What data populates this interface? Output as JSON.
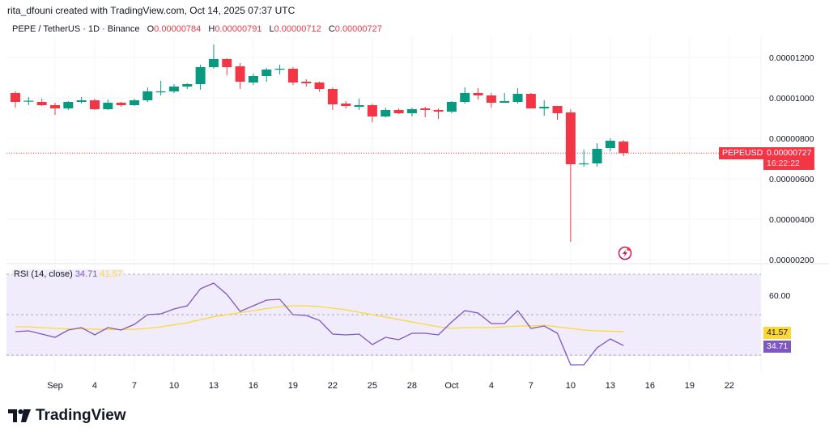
{
  "credit": "rita_dfouni created with TradingView.com, Oct 14, 2025 07:37 UTC",
  "symbol_line": {
    "name": "PEPE / TetherUS · 1D · Binance",
    "open_label": "O",
    "open": "0.00000784",
    "high_label": "H",
    "high": "0.00000791",
    "low_label": "L",
    "low": "0.00000712",
    "close_label": "C",
    "close": "0.00000727"
  },
  "price_axis": {
    "ticks": [
      "0.00001200",
      "0.00001000",
      "0.00000800",
      "0.00000600",
      "0.00000400",
      "0.00000200"
    ],
    "tick_values": [
      12,
      10,
      8,
      6,
      4,
      2
    ],
    "unit_note": "values in 1e-6 USDT"
  },
  "last_price": {
    "symbol_tag": "PEPEUSDT",
    "price": "0.00000727",
    "countdown": "16:22:22",
    "value": 7.27
  },
  "rsi": {
    "title": "RSI (14, close)",
    "rsi_value": "34.71",
    "ma_value": "41.57",
    "axis_tick": "60.00",
    "bands": [
      70,
      50,
      30
    ]
  },
  "time_axis": {
    "labels": [
      "Sep",
      "4",
      "7",
      "10",
      "13",
      "16",
      "19",
      "22",
      "25",
      "28",
      "Oct",
      "4",
      "7",
      "10",
      "13",
      "16",
      "19",
      "22"
    ],
    "label_day_index": [
      3,
      6,
      9,
      12,
      15,
      18,
      21,
      24,
      27,
      30,
      33,
      36,
      39,
      42,
      45,
      48,
      51,
      54
    ]
  },
  "colors": {
    "up": "#089981",
    "down": "#f23645",
    "rsi_line": "#7e57c2",
    "rsi_ma": "#fdd835",
    "rsi_bg": "#f0ecfb"
  },
  "chart_data": {
    "type": "candlestick",
    "x_start": "Aug 29",
    "dates": [
      "Aug 29",
      "Aug 30",
      "Aug 31",
      "Sep 1",
      "Sep 2",
      "Sep 3",
      "Sep 4",
      "Sep 5",
      "Sep 6",
      "Sep 7",
      "Sep 8",
      "Sep 9",
      "Sep 10",
      "Sep 11",
      "Sep 12",
      "Sep 13",
      "Sep 14",
      "Sep 15",
      "Sep 16",
      "Sep 17",
      "Sep 18",
      "Sep 19",
      "Sep 20",
      "Sep 21",
      "Sep 22",
      "Sep 23",
      "Sep 24",
      "Sep 25",
      "Sep 26",
      "Sep 27",
      "Sep 28",
      "Sep 29",
      "Sep 30",
      "Oct 1",
      "Oct 2",
      "Oct 3",
      "Oct 4",
      "Oct 5",
      "Oct 6",
      "Oct 7",
      "Oct 8",
      "Oct 9",
      "Oct 10",
      "Oct 11",
      "Oct 12",
      "Oct 13",
      "Oct 14"
    ],
    "ohlc_unit": "1e-6 USDT",
    "ohlc": [
      [
        10.24,
        10.32,
        9.52,
        9.8
      ],
      [
        9.82,
        10.04,
        9.64,
        9.86
      ],
      [
        9.8,
        9.96,
        9.6,
        9.64
      ],
      [
        9.64,
        9.76,
        9.16,
        9.48
      ],
      [
        9.48,
        9.84,
        9.4,
        9.8
      ],
      [
        9.8,
        10.04,
        9.72,
        9.88
      ],
      [
        9.88,
        9.96,
        9.4,
        9.44
      ],
      [
        9.44,
        9.92,
        9.4,
        9.76
      ],
      [
        9.76,
        9.8,
        9.56,
        9.64
      ],
      [
        9.64,
        9.96,
        9.6,
        9.88
      ],
      [
        9.88,
        10.52,
        9.8,
        10.32
      ],
      [
        10.28,
        10.84,
        10.12,
        10.32
      ],
      [
        10.32,
        10.68,
        10.24,
        10.56
      ],
      [
        10.56,
        10.72,
        10.44,
        10.68
      ],
      [
        10.68,
        11.64,
        10.4,
        11.52
      ],
      [
        11.52,
        12.64,
        11.44,
        11.92
      ],
      [
        11.92,
        11.96,
        11.12,
        11.52
      ],
      [
        11.56,
        11.72,
        10.44,
        10.8
      ],
      [
        10.76,
        11.2,
        10.64,
        11.08
      ],
      [
        11.08,
        11.48,
        10.8,
        11.4
      ],
      [
        11.4,
        11.64,
        11.16,
        11.44
      ],
      [
        11.44,
        11.52,
        10.64,
        10.76
      ],
      [
        10.8,
        10.92,
        10.56,
        10.72
      ],
      [
        10.76,
        10.8,
        10.3,
        10.44
      ],
      [
        10.44,
        10.52,
        9.4,
        9.68
      ],
      [
        9.72,
        9.84,
        9.48,
        9.6
      ],
      [
        9.56,
        9.96,
        9.4,
        9.64
      ],
      [
        9.64,
        9.72,
        8.8,
        9.08
      ],
      [
        9.08,
        9.52,
        9.04,
        9.4
      ],
      [
        9.4,
        9.48,
        9.2,
        9.24
      ],
      [
        9.24,
        9.52,
        9.08,
        9.44
      ],
      [
        9.48,
        9.56,
        9.04,
        9.4
      ],
      [
        9.4,
        9.48,
        8.96,
        9.32
      ],
      [
        9.32,
        9.84,
        9.24,
        9.8
      ],
      [
        9.8,
        10.52,
        9.72,
        10.24
      ],
      [
        10.24,
        10.48,
        9.92,
        10.12
      ],
      [
        10.12,
        10.24,
        9.52,
        9.76
      ],
      [
        9.76,
        10.24,
        9.76,
        9.84
      ],
      [
        9.8,
        10.48,
        9.72,
        10.2
      ],
      [
        10.2,
        10.24,
        9.48,
        9.48
      ],
      [
        9.48,
        9.88,
        9.12,
        9.56
      ],
      [
        9.6,
        9.6,
        8.92,
        9.24
      ],
      [
        9.28,
        9.44,
        2.88,
        6.72
      ],
      [
        6.72,
        7.44,
        6.6,
        6.76
      ],
      [
        6.76,
        7.76,
        6.6,
        7.48
      ],
      [
        7.52,
        8.0,
        7.36,
        7.88
      ],
      [
        7.84,
        7.91,
        7.12,
        7.27
      ]
    ],
    "rsi": [
      41.6,
      42,
      40.4,
      38.8,
      42.4,
      43.6,
      40,
      43.6,
      42.4,
      45.2,
      50,
      50.4,
      52.8,
      54.4,
      62.8,
      65.6,
      60,
      51.6,
      54.4,
      57.2,
      57.6,
      50,
      49.6,
      47.2,
      40.4,
      40,
      40.4,
      35.2,
      38.8,
      37.6,
      40.8,
      40.8,
      40,
      46.4,
      52,
      50.8,
      45.6,
      45.6,
      52,
      43.2,
      44.4,
      40.8,
      25.2,
      25.2,
      33.6,
      38,
      34.71
    ],
    "rsi_ma": [
      44,
      44,
      43.6,
      43.2,
      43,
      43,
      42.8,
      42.6,
      42.6,
      42.8,
      43.2,
      44,
      45,
      46,
      47.5,
      49,
      50,
      51,
      52,
      53,
      54,
      54.4,
      54.4,
      54,
      53.2,
      52.4,
      51.2,
      50,
      48.8,
      47.6,
      46.4,
      45.2,
      44,
      43.2,
      43.6,
      43.6,
      43.6,
      44,
      44.4,
      44.4,
      44.8,
      44,
      43.2,
      42.4,
      42,
      41.8,
      41.57
    ],
    "ylim": [
      2,
      13
    ],
    "rsi_ylim": [
      20,
      75
    ]
  },
  "brand": {
    "logo_text": "TradingView"
  }
}
